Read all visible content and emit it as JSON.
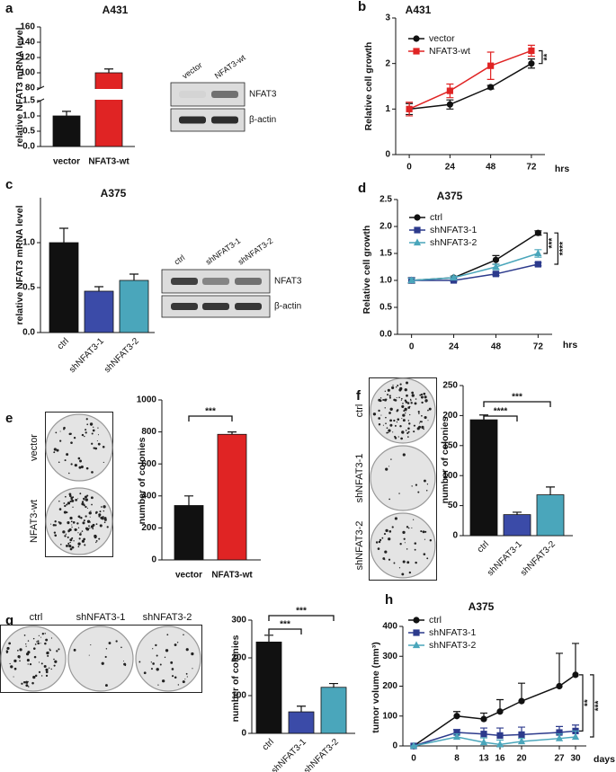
{
  "chart_data": [
    {
      "panel": "a",
      "type": "bar",
      "title": "A431",
      "y_label": "relative NFAT3 mRNA level",
      "categories": [
        "vector",
        "NFAT3-wt"
      ],
      "values": [
        1.0,
        100
      ],
      "errors": [
        0.15,
        5
      ],
      "colors": [
        "#111111",
        "#e02424"
      ],
      "ylim": [
        0,
        160
      ],
      "y_break": [
        1.5,
        80
      ],
      "yticks": [
        {
          "value": 0,
          "label": "0.0"
        },
        {
          "value": 0.5,
          "label": "0.5"
        },
        {
          "value": 1,
          "label": "1.0"
        },
        1.5,
        80,
        100,
        120,
        140,
        160
      ],
      "blot": {
        "lanes": [
          "vector",
          "NFAT3-wt"
        ],
        "bands": [
          "NFAT3",
          "β-actin"
        ]
      }
    },
    {
      "panel": "b",
      "type": "line",
      "title": "A431",
      "x_label": "hrs",
      "y_label": "Relative cell growth",
      "x": [
        0,
        24,
        48,
        72
      ],
      "xlim": [
        -8,
        80
      ],
      "xticks": [
        0,
        24,
        48,
        72
      ],
      "ylim": [
        0,
        3
      ],
      "yticks": [
        0,
        1,
        2,
        3
      ],
      "legend": "upper left",
      "series": [
        {
          "name": "vector",
          "color": "#111111",
          "marker": "circle",
          "values": [
            1.0,
            1.1,
            1.48,
            2.0
          ],
          "errors": [
            0.12,
            0.1,
            0.04,
            0.1
          ]
        },
        {
          "name": "NFAT3-wt",
          "color": "#e02424",
          "marker": "square",
          "values": [
            1.0,
            1.4,
            1.95,
            2.28
          ],
          "errors": [
            0.15,
            0.15,
            0.3,
            0.12
          ]
        }
      ],
      "significance": [
        "**"
      ]
    },
    {
      "panel": "c",
      "type": "bar",
      "title": "A375",
      "y_label": "relative NFAT3 mRNA level",
      "categories": [
        "ctrl",
        "shNFAT3-1",
        "shNFAT3-2"
      ],
      "values": [
        1.0,
        0.46,
        0.58
      ],
      "errors": [
        0.16,
        0.05,
        0.07
      ],
      "colors": [
        "#111111",
        "#3b4ba8",
        "#4aa6bb"
      ],
      "ylim": [
        0,
        1.5
      ],
      "yticks": [
        {
          "value": 0,
          "label": "0.0"
        },
        {
          "value": 0.5,
          "label": "0.5"
        },
        {
          "value": 1,
          "label": "1.0"
        }
      ],
      "blot": {
        "lanes": [
          "ctrl",
          "shNFAT3-1",
          "shNFAT3-2"
        ],
        "bands": [
          "NFAT3",
          "β-actin"
        ]
      }
    },
    {
      "panel": "d",
      "type": "line",
      "title": "A375",
      "x_label": "hrs",
      "y_label": "Relative cell growth",
      "x": [
        0,
        24,
        48,
        72
      ],
      "xlim": [
        -8,
        80
      ],
      "xticks": [
        0,
        24,
        48,
        72
      ],
      "ylim": [
        0,
        2.5
      ],
      "yticks": [
        {
          "value": 0,
          "label": "0.0"
        },
        {
          "value": 0.5,
          "label": "0.5"
        },
        {
          "value": 1,
          "label": "1.0"
        },
        1.5,
        {
          "value": 2,
          "label": "2.0"
        },
        2.5
      ],
      "legend": "upper left",
      "series": [
        {
          "name": "ctrl",
          "color": "#111111",
          "marker": "circle",
          "values": [
            1.0,
            1.05,
            1.38,
            1.88
          ],
          "errors": [
            0.05,
            0.03,
            0.08,
            0.04
          ]
        },
        {
          "name": "shNFAT3-1",
          "color": "#2c3a8c",
          "marker": "square",
          "values": [
            1.0,
            1.0,
            1.12,
            1.3
          ],
          "errors": [
            0.04,
            0.02,
            0.03,
            0.03
          ]
        },
        {
          "name": "shNFAT3-2",
          "color": "#4aa6bb",
          "marker": "triangle",
          "values": [
            1.0,
            1.05,
            1.25,
            1.5
          ],
          "errors": [
            0.04,
            0.03,
            0.05,
            0.07
          ]
        }
      ],
      "significance": [
        "***",
        "****"
      ]
    },
    {
      "panel": "e",
      "type": "bar",
      "y_label": "number of colonies",
      "categories": [
        "vector",
        "NFAT3-wt"
      ],
      "values": [
        340,
        785
      ],
      "errors": [
        60,
        15
      ],
      "colors": [
        "#111111",
        "#e02424"
      ],
      "ylim": [
        0,
        1000
      ],
      "yticks": [
        0,
        200,
        400,
        600,
        800,
        1000
      ],
      "significance": [
        "***"
      ],
      "plates": [
        "vector",
        "NFAT3-wt"
      ]
    },
    {
      "panel": "f",
      "type": "bar",
      "y_label": "number of colonies",
      "categories": [
        "ctrl",
        "shNFAT3-1",
        "shNFAT3-2"
      ],
      "values": [
        193,
        35,
        68
      ],
      "errors": [
        8,
        4,
        13
      ],
      "colors": [
        "#111111",
        "#3b4ba8",
        "#4aa6bb"
      ],
      "ylim": [
        0,
        250
      ],
      "yticks": [
        0,
        50,
        100,
        150,
        200,
        250
      ],
      "significance": [
        "****",
        "***"
      ],
      "plates": [
        "ctrl",
        "shNFAT3-1",
        "shNFAT3-2"
      ]
    },
    {
      "panel": "g",
      "type": "bar",
      "y_label": "number of colonies",
      "categories": [
        "ctrl",
        "shNFAT3-1",
        "shNFAT3-2"
      ],
      "values": [
        242,
        57,
        122
      ],
      "errors": [
        18,
        15,
        10
      ],
      "colors": [
        "#111111",
        "#3b4ba8",
        "#4aa6bb"
      ],
      "ylim": [
        0,
        300
      ],
      "yticks": [
        0,
        100,
        200,
        300
      ],
      "significance": [
        "***",
        "***"
      ],
      "plates": [
        "ctrl",
        "shNFAT3-1",
        "shNFAT3-2"
      ]
    },
    {
      "panel": "h",
      "type": "line",
      "title": "A375",
      "x_label": "days",
      "y_label": "tumor volume (mm³)",
      "x": [
        0,
        8,
        13,
        16,
        20,
        27,
        30
      ],
      "xlim": [
        -2,
        32
      ],
      "xticks": [
        0,
        8,
        13,
        16,
        20,
        27,
        30
      ],
      "ylim": [
        0,
        400
      ],
      "yticks": [
        0,
        100,
        200,
        300,
        400
      ],
      "legend": "upper left",
      "error_bars": "upper",
      "series": [
        {
          "name": "ctrl",
          "color": "#111111",
          "marker": "circle",
          "values": [
            0,
            100,
            90,
            115,
            150,
            200,
            238
          ],
          "errors": [
            0,
            15,
            20,
            40,
            60,
            110,
            105
          ]
        },
        {
          "name": "shNFAT3-1",
          "color": "#2c3a8c",
          "marker": "square",
          "values": [
            0,
            45,
            40,
            35,
            38,
            45,
            50
          ],
          "errors": [
            0,
            10,
            20,
            25,
            25,
            20,
            20
          ]
        },
        {
          "name": "shNFAT3-2",
          "color": "#4aa6bb",
          "marker": "triangle",
          "values": [
            0,
            30,
            12,
            5,
            15,
            25,
            30
          ],
          "errors": [
            0,
            10,
            15,
            15,
            10,
            15,
            20
          ]
        }
      ],
      "significance": [
        "**",
        "***"
      ]
    }
  ]
}
